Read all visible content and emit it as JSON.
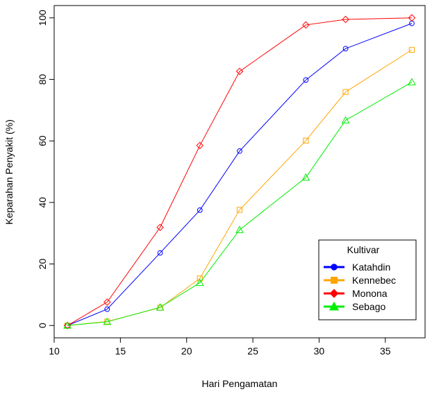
{
  "chart_data": {
    "type": "line",
    "title": "",
    "xlabel": "Hari Pengamatan",
    "ylabel": "Keparahan Penyakit (%)",
    "xlim": [
      10,
      38
    ],
    "ylim": [
      -4,
      104
    ],
    "x_ticks": [
      10,
      15,
      20,
      25,
      30,
      35
    ],
    "y_ticks": [
      0,
      20,
      40,
      60,
      80,
      100
    ],
    "x": [
      11,
      14,
      18,
      21,
      24,
      29,
      32,
      37
    ],
    "grid": false,
    "legend_title": "Kultivar",
    "legend_position": "bottom-right",
    "series": [
      {
        "name": "Katahdin",
        "color": "#0000ff",
        "marker": "circle",
        "values": [
          0,
          5.3,
          23.6,
          37.5,
          56.7,
          79.8,
          90,
          98.2
        ]
      },
      {
        "name": "Kennebec",
        "color": "#ffa500",
        "marker": "square",
        "values": [
          0,
          1.3,
          5.8,
          15.3,
          37.6,
          60.1,
          75.9,
          89.6
        ]
      },
      {
        "name": "Monona",
        "color": "#ff0000",
        "marker": "diamond",
        "values": [
          0,
          7.6,
          31.9,
          58.5,
          82.6,
          97.7,
          99.5,
          100
        ]
      },
      {
        "name": "Sebago",
        "color": "#00ee00",
        "marker": "triangle",
        "values": [
          0,
          1.2,
          5.9,
          13.9,
          31.1,
          48.1,
          66.7,
          79.1
        ]
      }
    ]
  }
}
